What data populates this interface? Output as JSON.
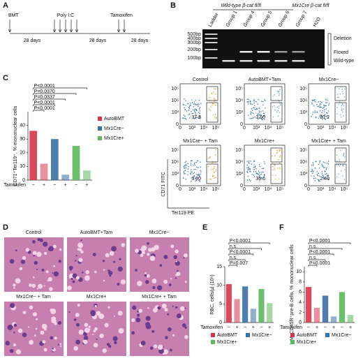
{
  "panels": [
    "A",
    "B",
    "C",
    "D",
    "E",
    "F"
  ],
  "timeline": {
    "events": [
      "BMT",
      "Poly I:C",
      "Tamoxifen"
    ],
    "intervals": [
      "28 days",
      "28 days",
      "28 days"
    ]
  },
  "gel": {
    "genotypes": [
      "Wild-type β-cat fl/fl",
      "Mx1Cre β-cat fl/fl"
    ],
    "lanes": [
      "Ladder",
      "Group 1",
      "Group 4",
      "Group 5",
      "Group 6",
      "Group 7",
      "H2O"
    ],
    "markers": [
      "500bp",
      "400bp",
      "300bp",
      "200bp",
      "100bp"
    ],
    "bands": [
      "Deletion",
      "Floxed",
      "Wild-type"
    ]
  },
  "flow": {
    "x_label": "Ter119 PE",
    "y_label": "CD71 FITC",
    "ticks": [
      "0",
      "10³",
      "10⁴",
      "10⁵"
    ],
    "plots": [
      {
        "title": "Control",
        "value": "37.8"
      },
      {
        "title": "AutoBMT+Tam",
        "value": "3.50"
      },
      {
        "title": "Mx1Cre−",
        "value": "31.2"
      },
      {
        "title": "Mx1Cre− + Tam",
        "value": "3.00"
      },
      {
        "title": "Mx1Cre+",
        "value": "36.6"
      },
      {
        "title": "Mx1Cre+ + Tam",
        "value": "2.40"
      }
    ]
  },
  "histology": {
    "titles": [
      "Control",
      "AutoBMT+Tam",
      "Mx1Cre−",
      "Mx1Cre− + Tam",
      "Mx1Cre+",
      "Mx1Cre+ + Tam"
    ]
  },
  "chart_data": [
    {
      "type": "bar",
      "y_label": "CD71⁺Ter119⁺, % mononuclear cells",
      "x_label": "Tamoxifen",
      "categories": [
        "−",
        "+"
      ],
      "series": [
        {
          "name": "AutoBMT",
          "color": "#d6344a",
          "values": [
            36,
            12
          ]
        },
        {
          "name": "Mx1Cre−",
          "color": "#3a6ea5",
          "values": [
            30,
            4
          ]
        },
        {
          "name": "Mx1Cre+",
          "color": "#5cb85c",
          "values": [
            25,
            7
          ]
        }
      ],
      "ylim": [
        0,
        50
      ],
      "yticks": [
        0,
        10,
        20,
        30,
        40
      ],
      "legend": "right",
      "annotations": [
        "P<0.0001",
        "P=0.0370",
        "P=0.0337",
        "P<0.0001",
        "P<0.0001"
      ]
    },
    {
      "type": "bar",
      "y_label": "RBC, cells/µl (10⁶)",
      "x_label": "Tamoxifen",
      "categories": [
        "−",
        "+"
      ],
      "series": [
        {
          "name": "AutoBMT",
          "color": "#d6344a",
          "values": [
            10.3,
            6.3
          ]
        },
        {
          "name": "Mx1Cre−",
          "color": "#3a6ea5",
          "values": [
            9.7,
            3.7
          ]
        },
        {
          "name": "Mx1Cre+",
          "color": "#5cb85c",
          "values": [
            9.0,
            5.2
          ]
        }
      ],
      "ylim": [
        0,
        15
      ],
      "yticks": [
        0,
        5,
        10,
        15
      ],
      "legend": "bottom",
      "annotations": [
        "P<0.0001",
        "n.s.",
        "P<0.0001",
        "n.s.",
        "P=0.007"
      ]
    },
    {
      "type": "bar",
      "y_label": "IgM⁻CD45R⁺pre-B cells, % mononuclear cells",
      "x_label": "Tamoxifen",
      "categories": [
        "−",
        "+"
      ],
      "series": [
        {
          "name": "AutoBMT",
          "color": "#d6344a",
          "values": [
            7.0,
            2.9
          ]
        },
        {
          "name": "Mx1Cre−",
          "color": "#3a6ea5",
          "values": [
            5.3,
            1.2
          ]
        },
        {
          "name": "Mx1Cre+",
          "color": "#5cb85c",
          "values": [
            6.0,
            1.5
          ]
        }
      ],
      "ylim": [
        0,
        11
      ],
      "yticks": [
        0,
        2,
        4,
        6,
        8,
        10
      ],
      "legend": "bottom",
      "annotations": [
        "P<0.0001",
        "n.s.",
        "P<0.0001",
        "n.s.",
        "P=0.0001"
      ]
    }
  ]
}
